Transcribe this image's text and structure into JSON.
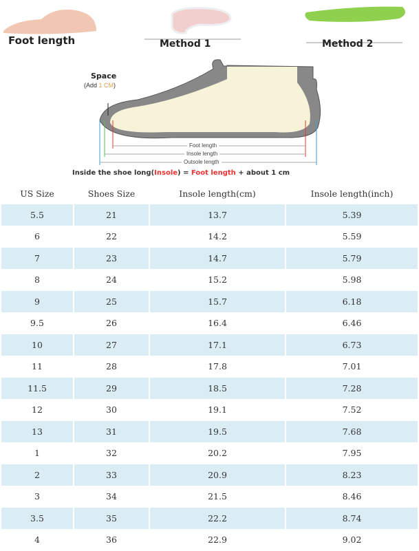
{
  "illustration": {
    "foot_length_caption": "Foot length",
    "method1_caption": "Method 1",
    "method2_caption": "Method 2",
    "space_label": "Space",
    "add_prefix": "(Add ",
    "add_value": "1 CM",
    "add_suffix": ")",
    "foot_length_line": "Foot length",
    "insole_length_line": "Insole length",
    "outsole_length_line": "Outsole length",
    "formula": {
      "part1": "Inside the shoe long(",
      "insole": "Insole",
      "part2": ") = ",
      "foot": "Foot length",
      "part3": " + about 1 cm"
    }
  },
  "colors": {
    "row_alt": "#daedf4",
    "accent_red": "#e33333",
    "insole_green": "#8fd14f"
  },
  "table": {
    "headers": [
      "US Size",
      "Shoes Size",
      "Insole length(cm)",
      "Insole length(inch)"
    ],
    "rows": [
      [
        "5.5",
        "21",
        "13.7",
        "5.39"
      ],
      [
        "6",
        "22",
        "14.2",
        "5.59"
      ],
      [
        "7",
        "23",
        "14.7",
        "5.79"
      ],
      [
        "8",
        "24",
        "15.2",
        "5.98"
      ],
      [
        "9",
        "25",
        "15.7",
        "6.18"
      ],
      [
        "9.5",
        "26",
        "16.4",
        "6.46"
      ],
      [
        "10",
        "27",
        "17.1",
        "6.73"
      ],
      [
        "11",
        "28",
        "17.8",
        "7.01"
      ],
      [
        "11.5",
        "29",
        "18.5",
        "7.28"
      ],
      [
        "12",
        "30",
        "19.1",
        "7.52"
      ],
      [
        "13",
        "31",
        "19.5",
        "7.68"
      ],
      [
        "1",
        "32",
        "20.2",
        "7.95"
      ],
      [
        "2",
        "33",
        "20.9",
        "8.23"
      ],
      [
        "3",
        "34",
        "21.5",
        "8.46"
      ],
      [
        "3.5",
        "35",
        "22.2",
        "8.74"
      ],
      [
        "4",
        "36",
        "22.9",
        "9.02"
      ]
    ]
  }
}
